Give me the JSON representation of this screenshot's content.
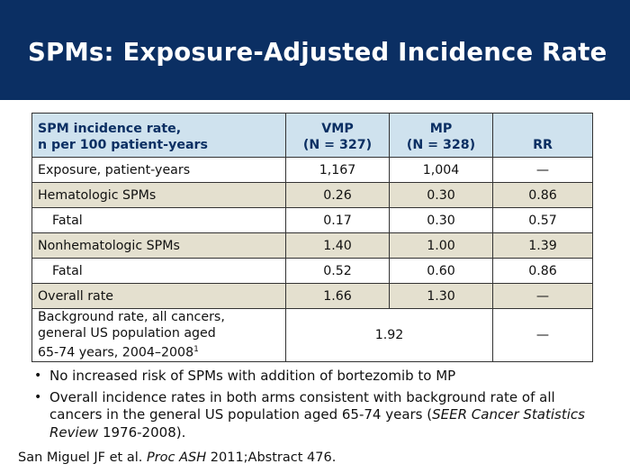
{
  "title": "SPMs: Exposure-Adjusted Incidence Rate",
  "table": {
    "header": {
      "col1_line1": "SPM incidence rate,",
      "col1_line2": "n per 100 patient-years",
      "col2_line1": "VMP",
      "col2_line2": "(N = 327)",
      "col3_line1": "MP",
      "col3_line2": "(N = 328)",
      "col4": "RR"
    },
    "rows": [
      {
        "label": "Exposure, patient-years",
        "vmp": "1,167",
        "mp": "1,004",
        "rr": "—"
      },
      {
        "label": "Hematologic SPMs",
        "vmp": "0.26",
        "mp": "0.30",
        "rr": "0.86"
      },
      {
        "label": "Fatal",
        "vmp": "0.17",
        "mp": "0.30",
        "rr": "0.57"
      },
      {
        "label": "Nonhematologic SPMs",
        "vmp": "1.40",
        "mp": "1.00",
        "rr": "1.39"
      },
      {
        "label": "Fatal",
        "vmp": "0.52",
        "mp": "0.60",
        "rr": "0.86"
      },
      {
        "label": "Overall rate",
        "vmp": "1.66",
        "mp": "1.30",
        "rr": "—"
      }
    ],
    "background_row": {
      "line1": "Background rate, all cancers,",
      "line2": "general US population aged",
      "line3": "65-74 years, 2004–2008",
      "superscript": "1",
      "value": "1.92",
      "rr": "—"
    }
  },
  "bullets": {
    "b1": "No increased risk of SPMs with addition of bortezomib to MP",
    "b2_pre": "Overall incidence rates in both arms consistent with background rate of all cancers in the general US population aged 65-74 years (",
    "b2_italic": "SEER Cancer Statistics Review",
    "b2_post": " 1976-2008)."
  },
  "citation": {
    "pre": "San Miguel JF et al. ",
    "italic": "Proc ASH",
    "post": " 2011;Abstract 476."
  }
}
